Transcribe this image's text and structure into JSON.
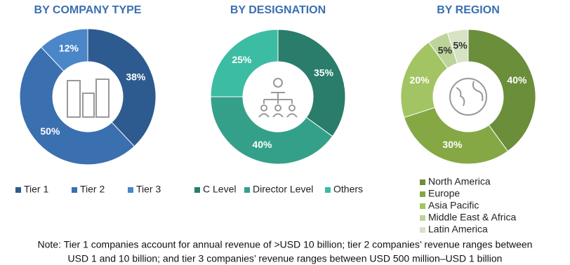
{
  "chart_data": [
    {
      "type": "pie",
      "title": "BY COMPANY TYPE",
      "categories": [
        "Tier 1",
        "Tier 2",
        "Tier 3"
      ],
      "values": [
        38,
        50,
        12
      ],
      "value_labels": [
        "38%",
        "50%",
        "12%"
      ],
      "colors": [
        "#2e5b8f",
        "#3a6fb0",
        "#4a86c8"
      ],
      "legend": "bottom"
    },
    {
      "type": "pie",
      "title": "BY DESIGNATION",
      "categories": [
        "C Level",
        "Director Level",
        "Others"
      ],
      "values": [
        35,
        40,
        25
      ],
      "value_labels": [
        "35%",
        "40%",
        "25%"
      ],
      "colors": [
        "#2a7d6a",
        "#35a08a",
        "#3cbca3"
      ],
      "legend": "bottom"
    },
    {
      "type": "pie",
      "title": "BY REGION",
      "categories": [
        "North America",
        "Europe",
        "Asia Pacific",
        "Middle East & Africa",
        "Latin America"
      ],
      "values": [
        40,
        30,
        20,
        5,
        5
      ],
      "value_labels": [
        "40%",
        "30%",
        "20%",
        "5%",
        "5%"
      ],
      "colors": [
        "#6b8e3a",
        "#85a844",
        "#a3c462",
        "#bcd49a",
        "#d6e3c4"
      ],
      "legend": "right"
    }
  ],
  "note": [
    "Note: Tier 1 companies account for annual revenue of >USD 10 billion; tier 2 companies’ revenue ranges between",
    "USD 1 and 10 billion; and tier 3 companies’ revenue ranges between USD 500 million–USD 1 billion"
  ]
}
